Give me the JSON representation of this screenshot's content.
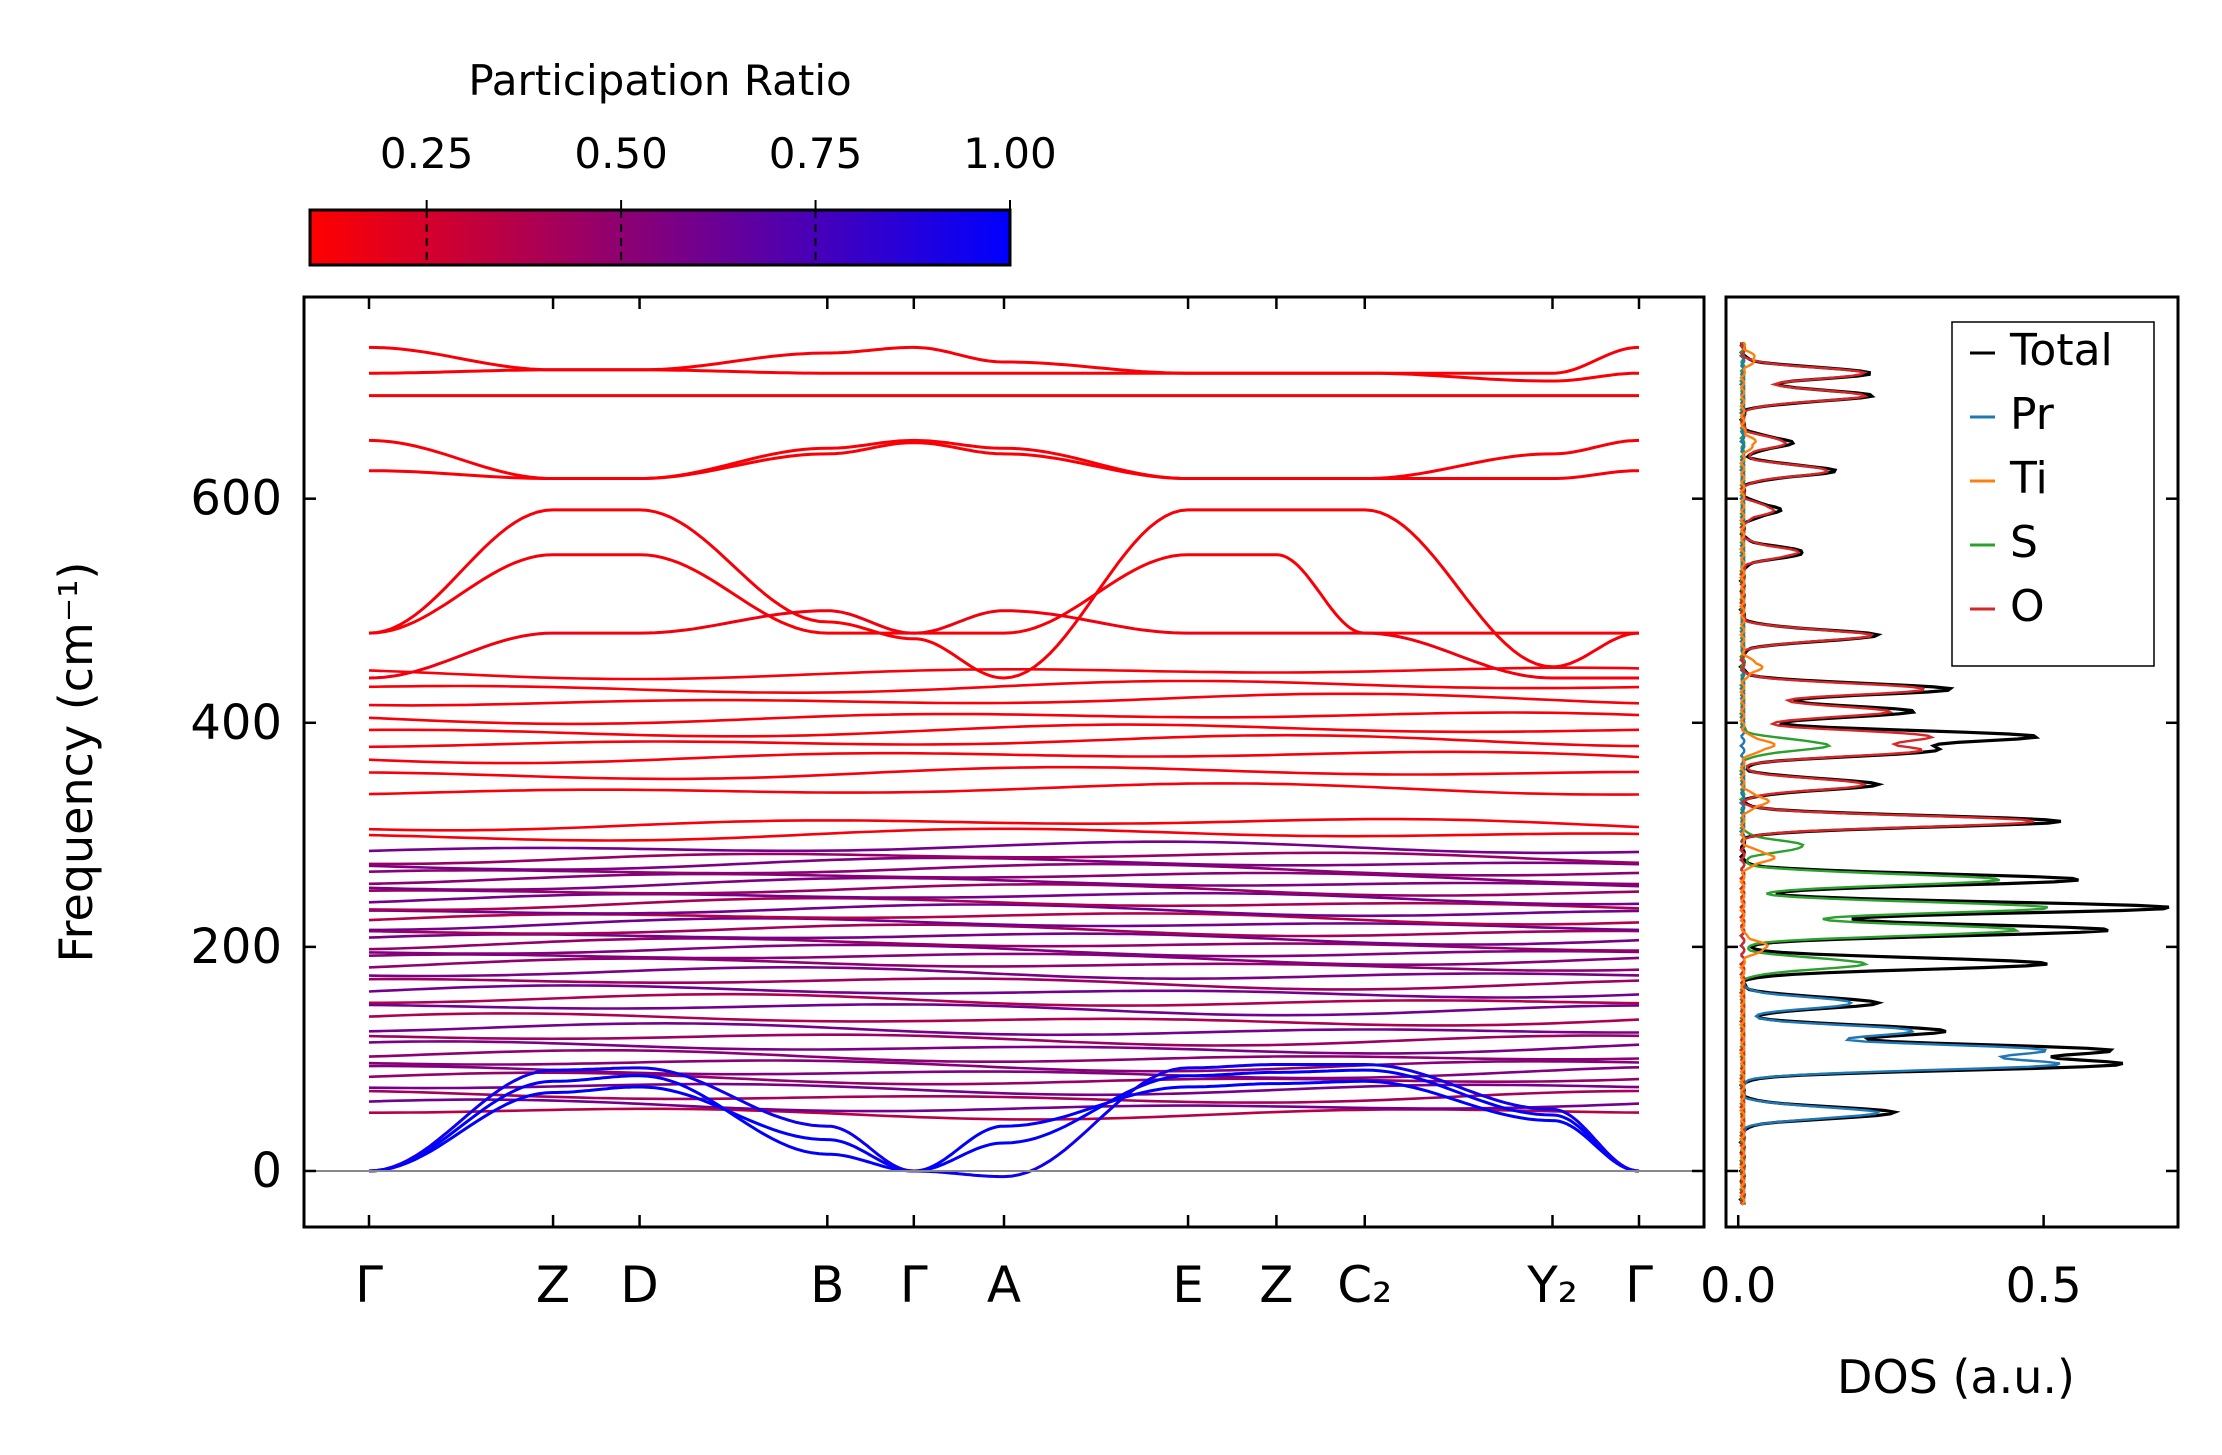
{
  "chart_data": [
    {
      "type": "line",
      "panel": "phonon-band-structure",
      "ylabel": "Frequency (cm⁻¹)",
      "ylim": [
        -50,
        780
      ],
      "yticks": [
        0,
        200,
        400,
        600
      ],
      "ytick_labels": [
        "0",
        "200",
        "400",
        "600"
      ],
      "kpath_labels": [
        "Γ",
        "Z",
        "D",
        "B",
        "Γ",
        "A",
        "E",
        "Z",
        "C₂",
        "Y₂",
        "Γ"
      ],
      "kpath_positions": [
        0.0,
        1.0,
        1.47,
        2.49,
        2.96,
        3.45,
        4.45,
        4.93,
        5.41,
        6.43,
        6.9
      ],
      "zero_line": 0,
      "colorbar": {
        "label": "Participation Ratio",
        "range": [
          0.1,
          1.0
        ],
        "ticks": [
          0.25,
          0.5,
          0.75,
          1.0
        ],
        "tick_labels": [
          "0.25",
          "0.50",
          "0.75",
          "1.00"
        ],
        "low_color": "#ff0000",
        "high_color": "#0000ff"
      },
      "bands_flat": [
        52,
        58,
        66,
        74,
        82,
        88,
        95,
        102,
        110,
        118,
        126,
        135,
        145,
        152,
        160,
        168,
        176,
        184,
        190,
        196,
        202,
        208,
        214,
        220,
        226,
        232,
        238,
        244,
        250,
        256,
        262,
        268,
        274,
        280,
        288,
        300,
        310,
        340,
        355,
        370,
        383,
        393,
        405,
        420,
        432,
        445
      ],
      "bands_curved": [
        {
          "freq": [
            480,
            550,
            550,
            480,
            480,
            480,
            550,
            550,
            480,
            480,
            480
          ],
          "pr": 0.12
        },
        {
          "freq": [
            480,
            590,
            590,
            490,
            475,
            440,
            590,
            590,
            590,
            450,
            480
          ],
          "pr": 0.12
        },
        {
          "freq": [
            440,
            480,
            480,
            500,
            480,
            500,
            480,
            480,
            480,
            440,
            440
          ],
          "pr": 0.15
        },
        {
          "freq": [
            625,
            618,
            618,
            640,
            650,
            640,
            618,
            618,
            618,
            618,
            625
          ],
          "pr": 0.12
        },
        {
          "freq": [
            652,
            618,
            618,
            645,
            652,
            645,
            618,
            618,
            618,
            640,
            652
          ],
          "pr": 0.12
        },
        {
          "freq": [
            692,
            692,
            692,
            692,
            692,
            692,
            692,
            692,
            692,
            692,
            692
          ],
          "pr": 0.12
        },
        {
          "freq": [
            712,
            715,
            715,
            712,
            712,
            712,
            712,
            712,
            712,
            705,
            712
          ],
          "pr": 0.12
        },
        {
          "freq": [
            735,
            715,
            715,
            730,
            735,
            722,
            712,
            712,
            712,
            712,
            735
          ],
          "pr": 0.12
        }
      ],
      "acoustic_bands": [
        {
          "freq": [
            0,
            70,
            75,
            28,
            0,
            40,
            75,
            78,
            80,
            45,
            0
          ],
          "pr": 1.0
        },
        {
          "freq": [
            0,
            80,
            85,
            15,
            0,
            25,
            85,
            88,
            90,
            50,
            0
          ],
          "pr": 1.0
        },
        {
          "freq": [
            0,
            90,
            92,
            40,
            0,
            -5,
            92,
            95,
            95,
            55,
            0
          ],
          "pr": 0.95
        }
      ]
    },
    {
      "type": "line",
      "panel": "density-of-states",
      "xlabel": "DOS (a.u.)",
      "xlim": [
        -0.02,
        0.72
      ],
      "xticks": [
        0.0,
        0.5
      ],
      "xtick_labels": [
        "0.0",
        "0.5"
      ],
      "ylim": [
        -50,
        780
      ],
      "legend_position": "top-right",
      "series": [
        {
          "name": "Total",
          "color": "#000000",
          "peaks": [
            [
              52,
              0.25
            ],
            [
              95,
              0.6
            ],
            [
              108,
              0.58
            ],
            [
              125,
              0.33
            ],
            [
              150,
              0.22
            ],
            [
              185,
              0.5
            ],
            [
              215,
              0.6
            ],
            [
              235,
              0.7
            ],
            [
              260,
              0.55
            ],
            [
              312,
              0.52
            ],
            [
              345,
              0.22
            ],
            [
              375,
              0.3
            ],
            [
              388,
              0.47
            ],
            [
              410,
              0.28
            ],
            [
              430,
              0.34
            ],
            [
              478,
              0.22
            ],
            [
              552,
              0.1
            ],
            [
              590,
              0.06
            ],
            [
              625,
              0.15
            ],
            [
              650,
              0.08
            ],
            [
              692,
              0.21
            ],
            [
              712,
              0.21
            ]
          ]
        },
        {
          "name": "Pr",
          "color": "#1f77b4",
          "peaks": [
            [
              52,
              0.22
            ],
            [
              95,
              0.5
            ],
            [
              108,
              0.48
            ],
            [
              125,
              0.28
            ],
            [
              150,
              0.18
            ]
          ]
        },
        {
          "name": "Ti",
          "color": "#ff7f0e",
          "peaks": [
            [
              200,
              0.04
            ],
            [
              280,
              0.05
            ],
            [
              330,
              0.04
            ],
            [
              380,
              0.05
            ],
            [
              450,
              0.03
            ],
            [
              650,
              0.02
            ],
            [
              725,
              0.02
            ]
          ]
        },
        {
          "name": "S",
          "color": "#2ca02c",
          "peaks": [
            [
              185,
              0.2
            ],
            [
              215,
              0.45
            ],
            [
              235,
              0.5
            ],
            [
              260,
              0.42
            ],
            [
              290,
              0.1
            ],
            [
              380,
              0.14
            ]
          ]
        },
        {
          "name": "O",
          "color": "#d62728",
          "peaks": [
            [
              312,
              0.48
            ],
            [
              345,
              0.2
            ],
            [
              375,
              0.28
            ],
            [
              388,
              0.3
            ],
            [
              410,
              0.24
            ],
            [
              430,
              0.3
            ],
            [
              478,
              0.21
            ],
            [
              552,
              0.09
            ],
            [
              590,
              0.05
            ],
            [
              625,
              0.14
            ],
            [
              650,
              0.07
            ],
            [
              692,
              0.2
            ],
            [
              712,
              0.2
            ]
          ]
        }
      ]
    }
  ]
}
